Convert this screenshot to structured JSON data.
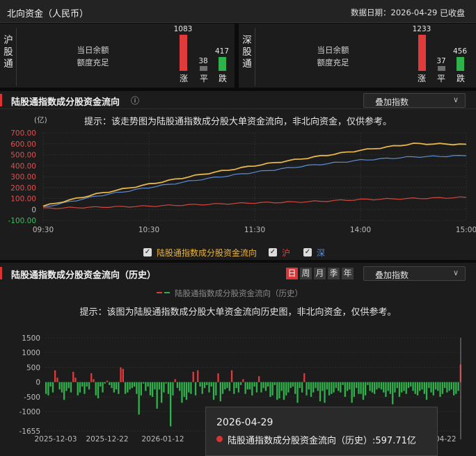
{
  "header": {
    "title": "北向资金（人民币）",
    "date": "数据日期：2026-04-29",
    "status": "已收盘"
  },
  "colors": {
    "up": "#e03a3a",
    "down": "#2fb24c",
    "flat": "#6e6e6e",
    "index_line": "#e8b54a",
    "sh_line": "#5b8fd6",
    "sz_line": "#d9463b"
  },
  "markets": [
    {
      "label": "沪股通",
      "quota_label": "当日余额",
      "quota_value": "额度充足",
      "up": 1083,
      "flat": 38,
      "down": 417,
      "up_label": "涨",
      "flat_label": "平",
      "down_label": "跌"
    },
    {
      "label": "深股通",
      "quota_label": "当日余额",
      "quota_value": "额度充足",
      "up": 1233,
      "flat": 37,
      "down": 456,
      "up_label": "涨",
      "flat_label": "平",
      "down_label": "跌"
    }
  ],
  "intraday": {
    "title": "陆股通指数成分股资金流向",
    "info_icon": "info-icon",
    "dropdown": "叠加指数",
    "tip": "提示：该走势图为陆股通指数成分股大单资金流向，非北向资金，仅供参考。",
    "unit": "(亿)",
    "legend": [
      {
        "label": "陆股通指数成分股资金流向",
        "color": "#e8b54a"
      },
      {
        "label": "沪",
        "color": "#d9463b"
      },
      {
        "label": "深",
        "color": "#5b8fd6"
      }
    ]
  },
  "chart_data": [
    {
      "type": "line",
      "x": [
        "09:30",
        "10:00",
        "10:30",
        "11:00",
        "11:30",
        "13:30",
        "14:00",
        "14:30",
        "15:00"
      ],
      "xticks": [
        "09:30",
        "10:30",
        "11:30",
        "14:00",
        "15:00"
      ],
      "yticks": [
        "700.00",
        "600.00",
        "500.00",
        "400.00",
        "300.00",
        "200.00",
        "100.00",
        "0",
        "-100.00"
      ],
      "ylim": [
        -100,
        700
      ],
      "series": [
        {
          "name": "陆股通指数成分股资金流向",
          "values": [
            30,
            140,
            230,
            320,
            400,
            470,
            540,
            600,
            595
          ]
        },
        {
          "name": "沪",
          "values": [
            10,
            20,
            30,
            45,
            60,
            70,
            90,
            100,
            110
          ]
        },
        {
          "name": "深",
          "values": [
            20,
            120,
            200,
            275,
            340,
            400,
            450,
            480,
            490
          ]
        }
      ]
    },
    {
      "type": "bar",
      "title": "陆股通指数成分股资金流向（历史）",
      "legend": "陆股通指数成分股资金流向（历史）",
      "yticks": [
        "1500",
        "1000",
        "500",
        "0",
        "-500",
        "-1000",
        "-1655"
      ],
      "ylim": [
        -1655,
        1500
      ],
      "xticks": [
        "2025-12-03",
        "2025-12-22",
        "2026-01-12",
        "2026-04-22"
      ],
      "values": [
        -400,
        -450,
        -150,
        -350,
        400,
        150,
        -250,
        -350,
        -600,
        -300,
        -200,
        -350,
        350,
        150,
        -450,
        -350,
        -150,
        -400,
        -150,
        -250,
        300,
        100,
        -450,
        -550,
        -150,
        -350,
        -50,
        50,
        -100,
        -200,
        -350,
        -250,
        -400,
        500,
        450,
        -400,
        -350,
        -250,
        -200,
        -150,
        -400,
        -1100,
        -450,
        -50,
        -300,
        -150,
        -450,
        -500,
        -250,
        -900,
        -250,
        -700,
        -350,
        -50,
        -400,
        -1500,
        -450,
        100,
        -200,
        -300,
        -700,
        -500,
        -600,
        -350,
        -400,
        350,
        -450,
        400,
        -150,
        -400,
        -200,
        -100,
        -350,
        -150,
        -600,
        -450,
        300,
        -650,
        -400,
        -250,
        -200,
        -300,
        400,
        -400,
        -200,
        -350,
        -100,
        100,
        -400,
        -250,
        -250,
        -450,
        -150,
        -350,
        200,
        -350,
        -200,
        -300,
        -150,
        -500,
        -450,
        -100,
        -600,
        -550,
        -300,
        -600,
        -450,
        -350,
        -200,
        -150,
        -400,
        -700,
        -200,
        -350,
        300,
        -450,
        -250,
        -500,
        -350,
        -200,
        -300,
        -650,
        -300,
        -700,
        -250,
        -450,
        -400,
        -350,
        -200,
        -300,
        -350,
        -100,
        -500,
        -300,
        -250,
        -700,
        -500,
        -200,
        -400,
        -400,
        -600,
        -450,
        -100,
        -300,
        -350,
        -400,
        -250,
        -200,
        -250,
        -350,
        -500,
        -300,
        -400,
        -750,
        -350,
        -200,
        -500,
        -350,
        -300,
        -400,
        -200,
        -150,
        -300,
        -400,
        -450,
        -300,
        -250,
        -400,
        -600,
        -200,
        -350,
        -450,
        -250,
        -300,
        -500,
        -400,
        -200,
        -350,
        -300,
        -250,
        -450,
        -400,
        -300,
        597.71
      ]
    }
  ],
  "history": {
    "title": "陆股通指数成分股资金流向（历史）",
    "tabs": [
      "日",
      "周",
      "月",
      "季",
      "年"
    ],
    "dropdown": "叠加指数",
    "legend": "陆股通指数成分股资金流向（历史）",
    "tip": "提示：该图为陆股通指数成分股大单资金流向历史图，非北向资金，仅供参考。",
    "tooltip": {
      "date": "2026-04-29",
      "label": "陆股通指数成分股资金流向（历史）:597.71亿"
    }
  }
}
